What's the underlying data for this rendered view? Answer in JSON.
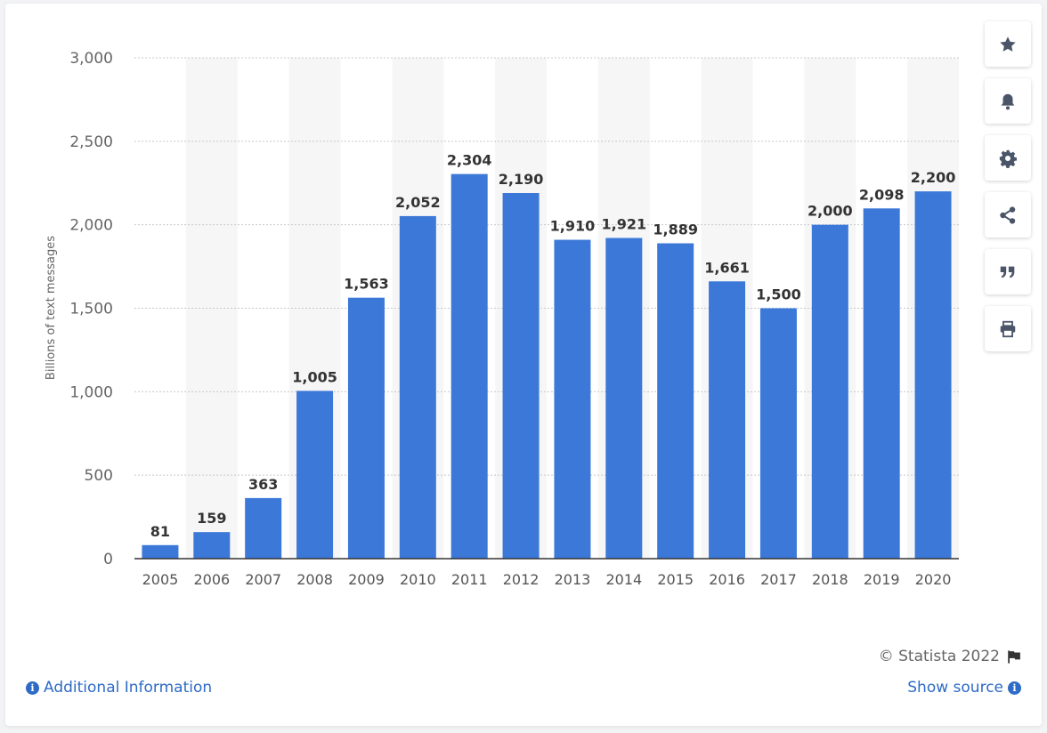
{
  "chart_data": {
    "type": "bar",
    "categories": [
      "2005",
      "2006",
      "2007",
      "2008",
      "2009",
      "2010",
      "2011",
      "2012",
      "2013",
      "2014",
      "2015",
      "2016",
      "2017",
      "2018",
      "2019",
      "2020"
    ],
    "values": [
      81,
      159,
      363,
      1005,
      1563,
      2052,
      2304,
      2190,
      1910,
      1921,
      1889,
      1661,
      1500,
      2000,
      2098,
      2200
    ],
    "data_labels": [
      "81",
      "159",
      "363",
      "1,005",
      "1,563",
      "2,052",
      "2,304",
      "2,190",
      "1,910",
      "1,921",
      "1,889",
      "1,661",
      "1,500",
      "2,000",
      "2,098",
      "2,200"
    ],
    "ylabel": "Billions of text messages",
    "ylim": [
      0,
      3000
    ],
    "yticks": [
      0,
      500,
      1000,
      1500,
      2000,
      2500,
      3000
    ],
    "ytick_labels": [
      "0",
      "500",
      "1,000",
      "1,500",
      "2,000",
      "2,500",
      "3,000"
    ],
    "grid": true,
    "bar_color": "#3c78d8",
    "band_color": "#f6f6f6"
  },
  "toolbar": {
    "buttons": [
      {
        "icon": "star-icon"
      },
      {
        "icon": "bell-icon"
      },
      {
        "icon": "gear-icon"
      },
      {
        "icon": "share-icon"
      },
      {
        "icon": "quote-icon"
      },
      {
        "icon": "print-icon"
      }
    ]
  },
  "footer": {
    "copyright": "© Statista 2022",
    "additional_info": "Additional Information",
    "show_source": "Show source"
  },
  "colors": {
    "accent": "#2e6bc6",
    "icon": "#4a5568"
  }
}
